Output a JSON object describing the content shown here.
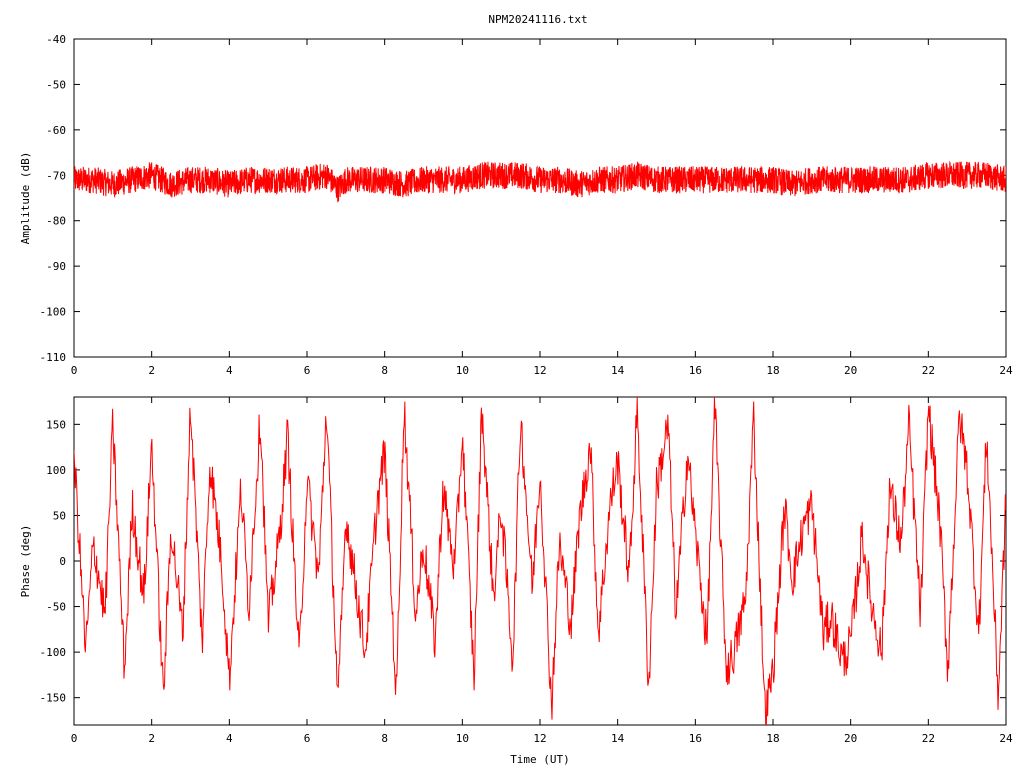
{
  "chart_data": [
    {
      "type": "line",
      "title": "NPM20241116.txt",
      "xlabel": "",
      "ylabel": "Amplitude (dB)",
      "xlim": [
        0,
        24
      ],
      "ylim": [
        -110,
        -40
      ],
      "x_ticks": [
        "0",
        "2",
        "4",
        "6",
        "8",
        "10",
        "12",
        "14",
        "16",
        "18",
        "20",
        "22",
        "24"
      ],
      "y_ticks": [
        "-110",
        "-100",
        "-90",
        "-80",
        "-70",
        "-60",
        "-50",
        "-40"
      ],
      "grid": false,
      "series": [
        {
          "color": "#ff0000",
          "x": [
            0,
            0.5,
            1,
            1.5,
            2,
            2.5,
            3,
            3.5,
            4,
            4.5,
            5,
            5.5,
            6,
            6.5,
            6.8,
            7,
            7.5,
            8,
            8.5,
            9,
            9.5,
            10,
            10.5,
            11,
            11.5,
            12,
            12.5,
            13,
            13.5,
            14,
            14.5,
            15,
            15.5,
            16,
            16.5,
            17,
            17.5,
            18,
            18.5,
            19,
            19.5,
            20,
            20.5,
            21,
            21.5,
            22,
            22.5,
            23,
            23.5,
            24
          ],
          "y": [
            -71,
            -71,
            -72,
            -71,
            -70,
            -72,
            -71,
            -71,
            -72,
            -71,
            -71,
            -71,
            -71,
            -70,
            -73,
            -71,
            -71,
            -71,
            -72,
            -71,
            -71,
            -71,
            -70,
            -70,
            -70,
            -71,
            -71,
            -72,
            -71,
            -71,
            -70,
            -71,
            -71,
            -71,
            -71,
            -71,
            -71,
            -71,
            -72,
            -71,
            -71,
            -71,
            -71,
            -71,
            -71,
            -70,
            -70,
            -70,
            -70,
            -71
          ],
          "band_halfwidth": 3
        }
      ]
    },
    {
      "type": "line",
      "title": "",
      "xlabel": "Time (UT)",
      "ylabel": "Phase (deg)",
      "xlim": [
        0,
        24
      ],
      "ylim": [
        -180,
        180
      ],
      "x_ticks": [
        "0",
        "2",
        "4",
        "6",
        "8",
        "10",
        "12",
        "14",
        "16",
        "18",
        "20",
        "22",
        "24"
      ],
      "y_ticks": [
        "-150",
        "-100",
        "-50",
        "0",
        "50",
        "100",
        "150"
      ],
      "y_tick_values": [
        -150,
        -100,
        -50,
        0,
        50,
        100,
        150
      ],
      "grid": false,
      "series": [
        {
          "color": "#ff0000",
          "x": [
            0,
            0.3,
            0.5,
            0.8,
            1,
            1.3,
            1.5,
            1.8,
            2,
            2.3,
            2.5,
            2.8,
            3,
            3.3,
            3.5,
            3.8,
            4,
            4.3,
            4.5,
            4.8,
            5,
            5.3,
            5.5,
            5.8,
            6,
            6.3,
            6.5,
            6.8,
            7,
            7.3,
            7.5,
            7.8,
            8,
            8.3,
            8.5,
            8.8,
            9,
            9.3,
            9.5,
            9.8,
            10,
            10.3,
            10.5,
            10.8,
            11,
            11.3,
            11.5,
            11.8,
            12,
            12.3,
            12.5,
            12.8,
            13,
            13.3,
            13.5,
            13.8,
            14,
            14.3,
            14.5,
            14.8,
            15,
            15.3,
            15.5,
            15.8,
            16,
            16.3,
            16.5,
            16.8,
            17,
            17.3,
            17.5,
            17.8,
            18,
            18.3,
            18.5,
            18.8,
            19,
            19.3,
            19.5,
            19.8,
            20,
            20.3,
            20.5,
            20.8,
            21,
            21.3,
            21.5,
            21.8,
            22,
            22.3,
            22.5,
            22.8,
            23,
            23.3,
            23.5,
            23.8,
            24
          ],
          "y": [
            120,
            -100,
            20,
            -60,
            150,
            -120,
            60,
            -40,
            130,
            -150,
            40,
            -80,
            170,
            -90,
            110,
            0,
            -130,
            80,
            -50,
            160,
            -70,
            30,
            140,
            -110,
            90,
            -20,
            170,
            -160,
            50,
            -40,
            -100,
            60,
            120,
            -150,
            170,
            -60,
            20,
            -90,
            80,
            -10,
            140,
            -130,
            170,
            -40,
            60,
            -110,
            160,
            -30,
            100,
            -160,
            20,
            -70,
            40,
            130,
            -80,
            60,
            110,
            -20,
            170,
            -140,
            80,
            150,
            -60,
            120,
            30,
            -90,
            170,
            -120,
            -100,
            -40,
            160,
            -170,
            -120,
            60,
            -20,
            40,
            60,
            -80,
            -60,
            -110,
            -90,
            30,
            -40,
            -100,
            80,
            20,
            150,
            -60,
            170,
            40,
            -120,
            160,
            100,
            -80,
            140,
            -150,
            70
          ]
        }
      ]
    }
  ]
}
